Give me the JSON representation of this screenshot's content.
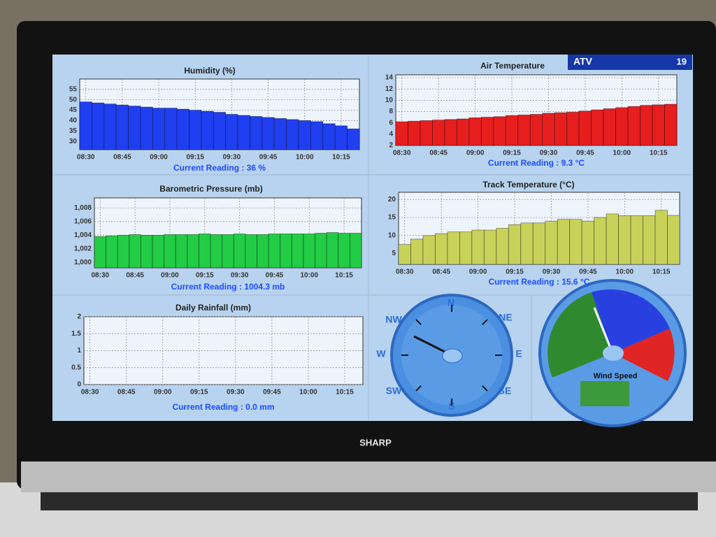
{
  "chart_data": [
    {
      "type": "bar",
      "title": "Humidity (%)",
      "reading": "Current Reading : 36 %",
      "color": "#1f3ff0",
      "x": [
        "08:30",
        "08:35",
        "08:40",
        "08:45",
        "08:50",
        "08:55",
        "09:00",
        "09:05",
        "09:10",
        "09:15",
        "09:20",
        "09:25",
        "09:30",
        "09:35",
        "09:40",
        "09:45",
        "09:50",
        "09:55",
        "10:00",
        "10:05",
        "10:10",
        "10:15",
        "10:20"
      ],
      "values": [
        49,
        48.5,
        48,
        47.5,
        47,
        46.5,
        46,
        46,
        45.5,
        45,
        44.5,
        44,
        43,
        42.5,
        42,
        41.5,
        41,
        40.5,
        40,
        39.5,
        38.5,
        37.5,
        36
      ],
      "ylim": [
        26,
        60
      ],
      "yticks": [
        30,
        35,
        40,
        45,
        50,
        55
      ],
      "xticks": [
        "08:30",
        "08:45",
        "09:00",
        "09:15",
        "09:30",
        "09:45",
        "10:00",
        "10:15"
      ],
      "grid": true
    },
    {
      "type": "bar",
      "title": "Air Temperature",
      "reading": "Current Reading : 9.3 °C",
      "color": "#e61e1e",
      "x": [
        "08:30",
        "08:35",
        "08:40",
        "08:45",
        "08:50",
        "08:55",
        "09:00",
        "09:05",
        "09:10",
        "09:15",
        "09:20",
        "09:25",
        "09:30",
        "09:35",
        "09:40",
        "09:45",
        "09:50",
        "09:55",
        "10:00",
        "10:05",
        "10:10",
        "10:15",
        "10:20"
      ],
      "values": [
        6.2,
        6.3,
        6.4,
        6.5,
        6.6,
        6.7,
        6.9,
        7,
        7.1,
        7.3,
        7.4,
        7.5,
        7.7,
        7.8,
        7.9,
        8.1,
        8.3,
        8.5,
        8.7,
        8.9,
        9.1,
        9.2,
        9.3
      ],
      "ylim": [
        2,
        14.5
      ],
      "yticks": [
        2,
        4,
        6,
        8,
        10,
        12,
        14
      ],
      "xticks": [
        "08:30",
        "08:45",
        "09:00",
        "09:15",
        "09:30",
        "09:45",
        "10:00",
        "10:15"
      ],
      "grid": true
    },
    {
      "type": "bar",
      "title": "Barometric Pressure (mb)",
      "reading": "Current Reading : 1004.3 mb",
      "color": "#22cc44",
      "x": [
        "08:30",
        "08:35",
        "08:40",
        "08:45",
        "08:50",
        "08:55",
        "09:00",
        "09:05",
        "09:10",
        "09:15",
        "09:20",
        "09:25",
        "09:30",
        "09:35",
        "09:40",
        "09:45",
        "09:50",
        "09:55",
        "10:00",
        "10:05",
        "10:10",
        "10:15",
        "10:20"
      ],
      "values": [
        1003.8,
        1003.9,
        1004,
        1004.1,
        1004,
        1004,
        1004.1,
        1004.1,
        1004.1,
        1004.2,
        1004.1,
        1004.1,
        1004.2,
        1004.1,
        1004.1,
        1004.2,
        1004.2,
        1004.2,
        1004.2,
        1004.3,
        1004.4,
        1004.3,
        1004.3
      ],
      "ylim": [
        999.2,
        1009.5
      ],
      "yticks": [
        {
          "value": 1000,
          "label": "1,000"
        },
        {
          "value": 1002,
          "label": "1,002"
        },
        {
          "value": 1004,
          "label": "1,004"
        },
        {
          "value": 1006,
          "label": "1,006"
        },
        {
          "value": 1008,
          "label": "1,008"
        }
      ],
      "xticks": [
        "08:30",
        "08:45",
        "09:00",
        "09:15",
        "09:30",
        "09:45",
        "10:00",
        "10:15"
      ],
      "grid": true
    },
    {
      "type": "bar",
      "title": "Track Temperature (°C)",
      "reading": "Current Reading : 15.6 °C",
      "color": "#c8d25a",
      "x": [
        "08:30",
        "08:35",
        "08:40",
        "08:45",
        "08:50",
        "08:55",
        "09:00",
        "09:05",
        "09:10",
        "09:15",
        "09:20",
        "09:25",
        "09:30",
        "09:35",
        "09:40",
        "09:45",
        "09:50",
        "09:55",
        "10:00",
        "10:05",
        "10:10",
        "10:15",
        "10:20"
      ],
      "values": [
        7.5,
        9,
        10,
        10.5,
        11,
        11,
        11.5,
        11.5,
        12,
        13,
        13.5,
        13.5,
        14,
        14.5,
        14.5,
        14,
        15,
        16,
        15.5,
        15.5,
        15.5,
        17,
        15.6
      ],
      "ylim": [
        2,
        22
      ],
      "yticks": [
        5,
        10,
        15,
        20
      ],
      "xticks": [
        "08:30",
        "08:45",
        "09:00",
        "09:15",
        "09:30",
        "09:45",
        "10:00",
        "10:15"
      ],
      "grid": true
    },
    {
      "type": "bar",
      "title": "Daily Rainfall (mm)",
      "reading": "Current Reading : 0.0 mm",
      "color": "#3050e0",
      "x": [
        "08:30",
        "08:35",
        "08:40",
        "08:45",
        "08:50",
        "08:55",
        "09:00",
        "09:05",
        "09:10",
        "09:15",
        "09:20",
        "09:25",
        "09:30",
        "09:35",
        "09:40",
        "09:45",
        "09:50",
        "09:55",
        "10:00",
        "10:05",
        "10:10",
        "10:15",
        "10:20"
      ],
      "values": [
        0,
        0,
        0,
        0,
        0,
        0,
        0,
        0,
        0,
        0,
        0,
        0,
        0,
        0,
        0,
        0,
        0,
        0,
        0,
        0,
        0,
        0,
        0
      ],
      "ylim": [
        0,
        2
      ],
      "yticks": [
        0,
        0.5,
        1,
        1.5,
        2
      ],
      "xticks": [
        "08:30",
        "08:45",
        "09:00",
        "09:15",
        "09:30",
        "09:45",
        "10:00",
        "10:15"
      ],
      "grid": true
    }
  ],
  "compass": {
    "labels": [
      "N",
      "NE",
      "E",
      "SE",
      "S",
      "SW",
      "W",
      "NW"
    ]
  },
  "wind_gauge": {
    "label": "Wind Speed"
  },
  "overlay": {
    "source": "ATV",
    "channel": "19"
  },
  "brand": "SHARP"
}
